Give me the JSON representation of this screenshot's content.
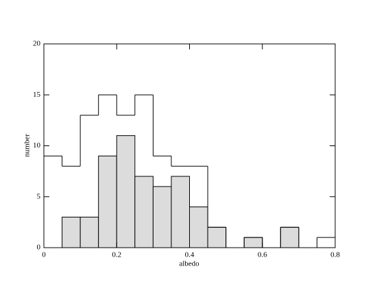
{
  "chart_data": {
    "type": "histogram",
    "xlabel": "albedo",
    "ylabel": "number",
    "bins": [
      0,
      0.05,
      0.1,
      0.15,
      0.2,
      0.25,
      0.3,
      0.35,
      0.4,
      0.45,
      0.5,
      0.55,
      0.6,
      0.65,
      0.7,
      0.75,
      0.8
    ],
    "series": [
      {
        "color": "#dcdcdc",
        "values": [
          0,
          3,
          3,
          9,
          11,
          7,
          6,
          7,
          4,
          2,
          0,
          1,
          0,
          2,
          0,
          0
        ]
      },
      {
        "color": "none",
        "values": [
          9,
          8,
          13,
          15,
          13,
          15,
          9,
          8,
          8,
          2,
          0,
          1,
          0,
          2,
          0,
          1
        ]
      }
    ],
    "xlim": [
      0,
      0.8
    ],
    "xticks": [
      0,
      0.2,
      0.4,
      0.6,
      0.8
    ],
    "ylim": [
      0,
      20
    ],
    "yticks": [
      0,
      5,
      10,
      15,
      20
    ]
  }
}
